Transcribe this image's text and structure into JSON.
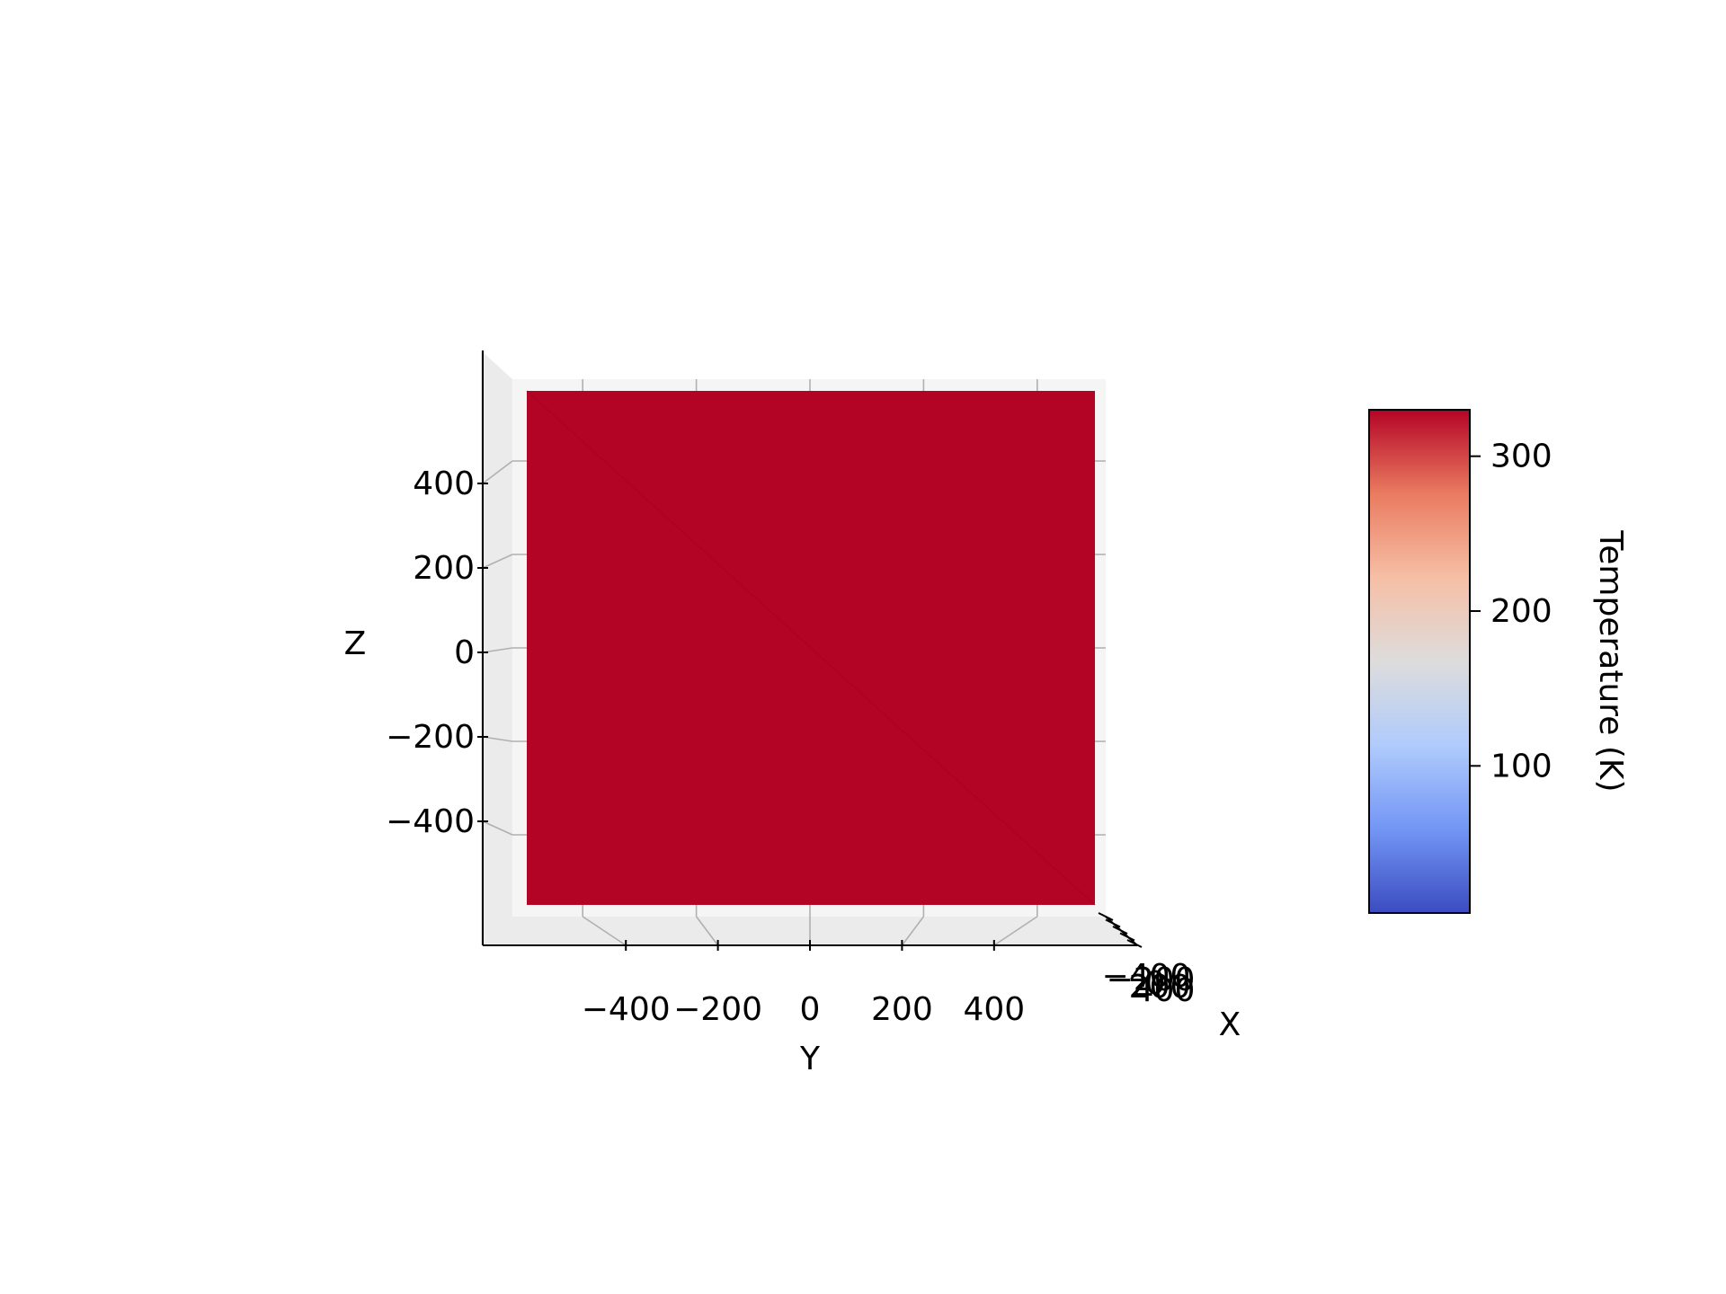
{
  "chart_data": {
    "type": "surface3d",
    "view": "front (Y horizontal, Z vertical, X into depth)",
    "xlabel": "X",
    "ylabel": "Y",
    "zlabel": "Z",
    "x_ticks": [
      "−400",
      "−200",
      "0",
      "200",
      "400"
    ],
    "y_ticks": [
      "−400",
      "−200",
      "0",
      "200",
      "400"
    ],
    "z_ticks": [
      "−400",
      "−200",
      "0",
      "200",
      "400"
    ],
    "xlim": [
      -500,
      500
    ],
    "ylim": [
      -500,
      500
    ],
    "zlim": [
      -500,
      500
    ],
    "surface": {
      "y_range": [
        -500,
        500
      ],
      "z_range": [
        -500,
        500
      ],
      "temperature_K": 330,
      "color": "#b40426"
    },
    "colorbar": {
      "label": "Temperature (K)",
      "cmap": "coolwarm",
      "range": [
        5,
        330
      ],
      "ticks": [
        {
          "value": 100,
          "label": "100"
        },
        {
          "value": 200,
          "label": "200"
        },
        {
          "value": 300,
          "label": "300"
        }
      ],
      "colors": [
        "#3b4cc0",
        "#7396f5",
        "#b0cbfc",
        "#dddcdc",
        "#f6bfa6",
        "#ea7b60",
        "#b40426"
      ]
    },
    "grid": true,
    "pane_color": "#f2f2f2"
  }
}
